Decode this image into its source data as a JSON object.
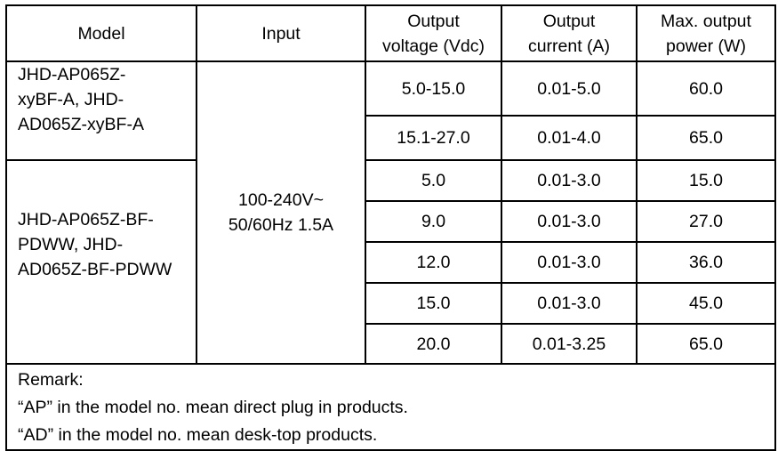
{
  "headers": [
    "Model",
    "Input",
    "Output voltage (Vdc)",
    "Output current (A)",
    "Max. output power (W)"
  ],
  "input": "100-240V~ 50/60Hz 1.5A",
  "groups": [
    {
      "model": "JHD-AP065Z-xyBF-A, JHD-AD065Z-xyBF-A",
      "rows": [
        {
          "voltage": "5.0-15.0",
          "current": "0.01-5.0",
          "power": "60.0"
        },
        {
          "voltage": "15.1-27.0",
          "current": "0.01-4.0",
          "power": "65.0"
        }
      ]
    },
    {
      "model": "JHD-AP065Z-BF-PDWW, JHD-AD065Z-BF-PDWW",
      "rows": [
        {
          "voltage": "5.0",
          "current": "0.01-3.0",
          "power": "15.0"
        },
        {
          "voltage": "9.0",
          "current": "0.01-3.0",
          "power": "27.0"
        },
        {
          "voltage": "12.0",
          "current": "0.01-3.0",
          "power": "36.0"
        },
        {
          "voltage": "15.0",
          "current": "0.01-3.0",
          "power": "45.0"
        },
        {
          "voltage": "20.0",
          "current": "0.01-3.25",
          "power": "65.0"
        }
      ]
    }
  ],
  "remark": {
    "title": "Remark:",
    "lines": [
      "“AP” in the model no. mean direct plug in products.",
      "“AD” in the model no. mean desk-top products."
    ]
  }
}
